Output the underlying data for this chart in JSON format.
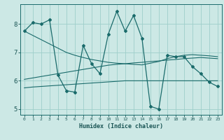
{
  "xlabel": "Humidex (Indice chaleur)",
  "bg_color": "#cce8e5",
  "grid_color": "#9ececa",
  "line_color": "#1a6b6b",
  "xlim": [
    -0.5,
    23.5
  ],
  "ylim": [
    4.8,
    8.7
  ],
  "xticks": [
    0,
    1,
    2,
    3,
    4,
    5,
    6,
    7,
    8,
    9,
    10,
    11,
    12,
    13,
    14,
    15,
    16,
    17,
    18,
    19,
    20,
    21,
    22,
    23
  ],
  "yticks": [
    5,
    6,
    7,
    8
  ],
  "main_y": [
    7.75,
    8.05,
    8.0,
    8.15,
    6.2,
    5.65,
    5.6,
    7.25,
    6.6,
    6.25,
    7.65,
    8.45,
    7.75,
    8.3,
    7.5,
    5.1,
    5.0,
    6.9,
    6.85,
    6.85,
    6.5,
    6.25,
    5.95,
    5.8
  ],
  "upper_y": [
    7.75,
    7.6,
    7.45,
    7.3,
    7.15,
    7.0,
    6.9,
    6.82,
    6.75,
    6.7,
    6.65,
    6.62,
    6.6,
    6.58,
    6.56,
    6.62,
    6.68,
    6.78,
    6.85,
    6.9,
    6.92,
    6.9,
    6.88,
    6.85
  ],
  "mid_y": [
    6.05,
    6.1,
    6.15,
    6.2,
    6.25,
    6.3,
    6.35,
    6.4,
    6.45,
    6.5,
    6.55,
    6.58,
    6.6,
    6.63,
    6.65,
    6.68,
    6.7,
    6.73,
    6.75,
    6.78,
    6.8,
    6.82,
    6.8,
    6.78
  ],
  "lower_y": [
    5.75,
    5.78,
    5.8,
    5.82,
    5.84,
    5.86,
    5.88,
    5.9,
    5.92,
    5.94,
    5.96,
    5.98,
    6.0,
    6.0,
    6.0,
    6.0,
    6.0,
    6.0,
    6.0,
    6.0,
    6.0,
    6.0,
    6.0,
    6.0
  ]
}
